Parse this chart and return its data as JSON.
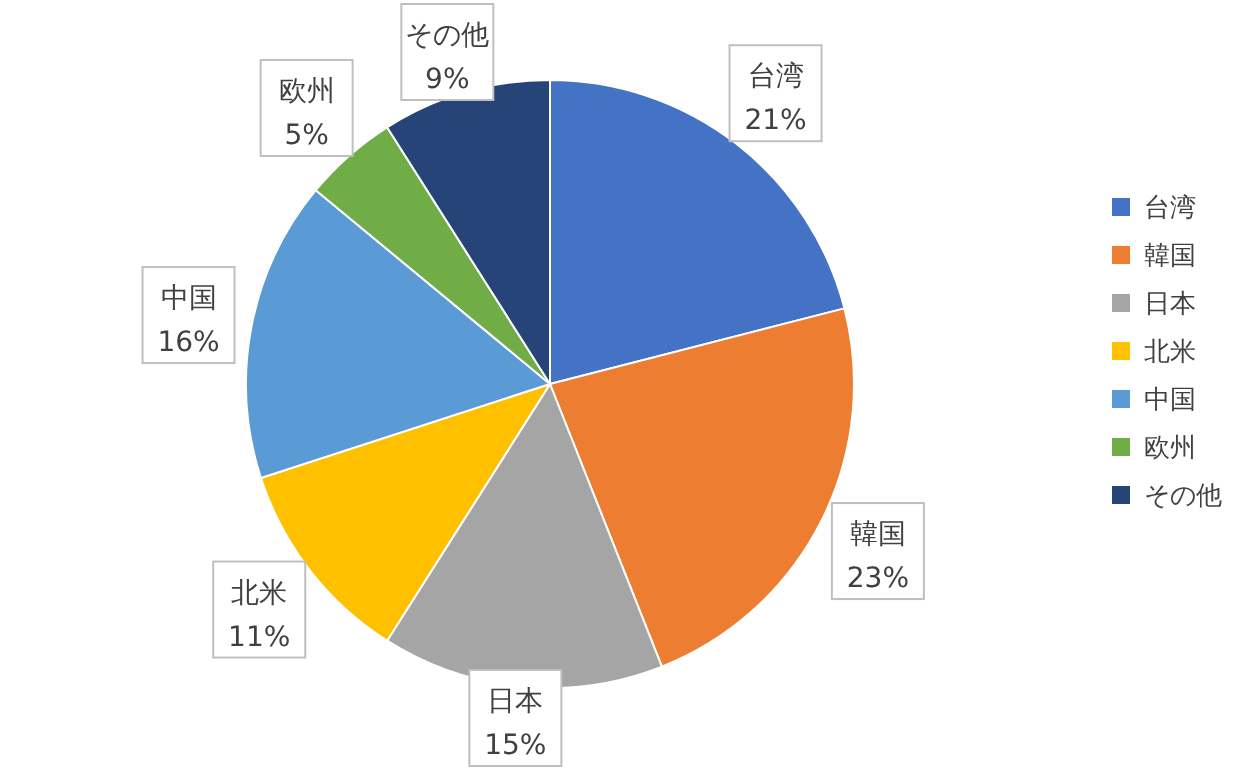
{
  "chart_data": {
    "type": "pie",
    "categories": [
      "台湾",
      "韓国",
      "日本",
      "北米",
      "中国",
      "欧州",
      "その他"
    ],
    "values": [
      21,
      23,
      15,
      11,
      16,
      5,
      9
    ],
    "value_labels": [
      "21%",
      "23%",
      "15%",
      "11%",
      "16%",
      "5%",
      "9%"
    ],
    "colors": [
      "#4472c4",
      "#ed7d31",
      "#a5a5a5",
      "#ffc000",
      "#5b9bd5",
      "#70ad47",
      "#264478"
    ],
    "legend": "right"
  }
}
